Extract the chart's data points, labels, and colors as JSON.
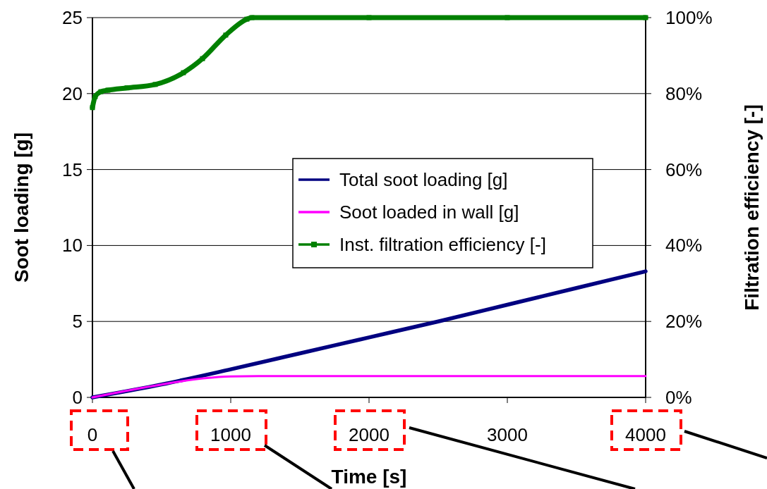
{
  "chart_data": {
    "type": "line",
    "xlabel": "Time [s]",
    "ylabel": "Soot loading [g]",
    "y2label": "Filtration efficiency [-]",
    "xlim": [
      0,
      4000
    ],
    "xticks": [
      0,
      1000,
      2000,
      3000,
      4000
    ],
    "ylim": [
      0,
      25
    ],
    "yticks": [
      0,
      5,
      10,
      15,
      20,
      25
    ],
    "y2lim": [
      0,
      100
    ],
    "y2ticks": [
      {
        "value": 0,
        "label": "0%"
      },
      {
        "value": 20,
        "label": "20%"
      },
      {
        "value": 40,
        "label": "40%"
      },
      {
        "value": 60,
        "label": "60%"
      },
      {
        "value": 80,
        "label": "80%"
      },
      {
        "value": 100,
        "label": "100%"
      }
    ],
    "grid": "y",
    "legend": "right",
    "series": [
      {
        "name": "Total soot loading [g]",
        "color": "#000080",
        "x": [
          0,
          500,
          1000,
          1500,
          2000,
          2500,
          3000,
          3500,
          4000
        ],
        "values": [
          0,
          0.85,
          1.85,
          2.9,
          3.95,
          5.0,
          6.1,
          7.2,
          8.3
        ]
      },
      {
        "name": "Soot loaded in wall [g]",
        "color": "#ff00ff",
        "x": [
          0,
          500,
          800,
          1000,
          1200,
          4000
        ],
        "values": [
          0,
          0.85,
          1.25,
          1.38,
          1.4,
          1.4
        ]
      },
      {
        "name": "Inst. filtration efficiency [-]",
        "color": "#008000",
        "axis": "y2",
        "marker": "square",
        "x": [
          0,
          20,
          61,
          112,
          250,
          454,
          658,
          796,
          964,
          1117,
          1153,
          2000,
          3000,
          4000
        ],
        "values": [
          76.3,
          79.2,
          80.5,
          80.9,
          81.5,
          82.4,
          85.5,
          89.2,
          95.4,
          99.6,
          100,
          100,
          100,
          100
        ]
      }
    ]
  }
}
